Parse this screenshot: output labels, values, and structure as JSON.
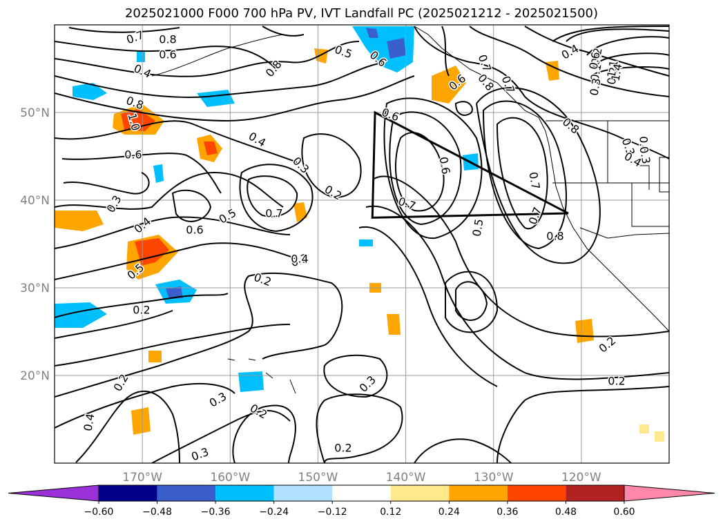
{
  "title": "2025021000 F000 700 hPa PV, IVT Landfall PC (2025021212 - 2025021500)",
  "map": {
    "lon_range": [
      -180,
      -110
    ],
    "lat_range": [
      10,
      60
    ],
    "lon_ticks": [
      {
        "value": -170,
        "label": "170°W"
      },
      {
        "value": -160,
        "label": "160°W"
      },
      {
        "value": -150,
        "label": "150°W"
      },
      {
        "value": -140,
        "label": "140°W"
      },
      {
        "value": -130,
        "label": "130°W"
      },
      {
        "value": -120,
        "label": "120°W"
      }
    ],
    "lat_ticks": [
      {
        "value": 20,
        "label": "20°N"
      },
      {
        "value": 30,
        "label": "30°N"
      },
      {
        "value": 40,
        "label": "40°N"
      },
      {
        "value": 50,
        "label": "50°N"
      }
    ],
    "gridlines": true,
    "contour_labels": [
      "0.7",
      "0.8",
      "0.6",
      "0.4",
      "0.8",
      "1.0",
      "0.6",
      "0.4",
      "0.3",
      "0.2",
      "0.7",
      "0.6",
      "0.5",
      "0.4",
      "0.3",
      "0.2",
      "0.3",
      "0.2",
      "0.2",
      "0.3",
      "0.3",
      "0.2",
      "0.2",
      "0.4",
      "0.5",
      "0.7",
      "0.6",
      "0.6",
      "0.7",
      "0.5",
      "0.8",
      "0.7",
      "0.8",
      "0.2",
      "0.2",
      "0.3",
      "0.4",
      "0.3",
      "0.8",
      "0.4",
      "0.2",
      "0.5",
      "0.6",
      "0.7",
      "0.8",
      "0.7",
      "0.6",
      "0.5",
      "0.4",
      "0.3",
      "0.2",
      "0.1",
      "0.3",
      "0.6",
      "1.1",
      "1.4"
    ],
    "landfall_region_lonlat": [
      [
        -143.5,
        50
      ],
      [
        -121.5,
        38.5
      ],
      [
        -143.8,
        38
      ]
    ]
  },
  "colorbar": {
    "ticks": [
      "−0.60",
      "−0.48",
      "−0.36",
      "−0.24",
      "−0.12",
      "0.12",
      "0.24",
      "0.36",
      "0.48",
      "0.60"
    ],
    "colors": [
      "#9b30d8",
      "#00008b",
      "#3a5fcd",
      "#00bfff",
      "#b0e2ff",
      "#ffffff",
      "#ffe98c",
      "#ffa500",
      "#ff4500",
      "#b22222",
      "#ff88aa"
    ]
  }
}
